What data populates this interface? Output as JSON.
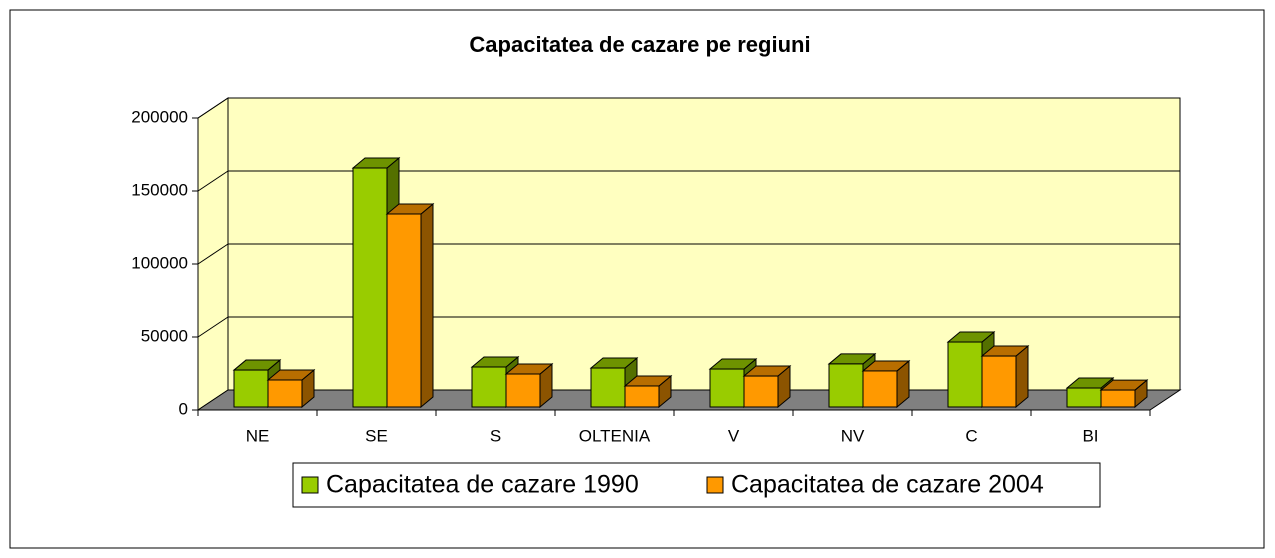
{
  "chart_data": {
    "type": "bar3d",
    "title": "Capacitatea de cazare pe regiuni",
    "categories": [
      "NE",
      "SE",
      "S",
      "OLTENIA",
      "V",
      "NV",
      "C",
      "BI"
    ],
    "series": [
      {
        "name": "Capacitatea de cazare 1990",
        "color": "#99cc00",
        "values": [
          25300,
          163700,
          27400,
          26700,
          26000,
          29500,
          44500,
          13000
        ]
      },
      {
        "name": "Capacitatea de cazare 2004",
        "color": "#ff9900",
        "values": [
          18500,
          132200,
          22600,
          14400,
          21200,
          24700,
          34900,
          11600
        ]
      }
    ],
    "ylim": [
      0,
      200000
    ],
    "yticks": [
      0,
      50000,
      100000,
      150000,
      200000
    ],
    "grid": true,
    "legend": "bottom"
  }
}
